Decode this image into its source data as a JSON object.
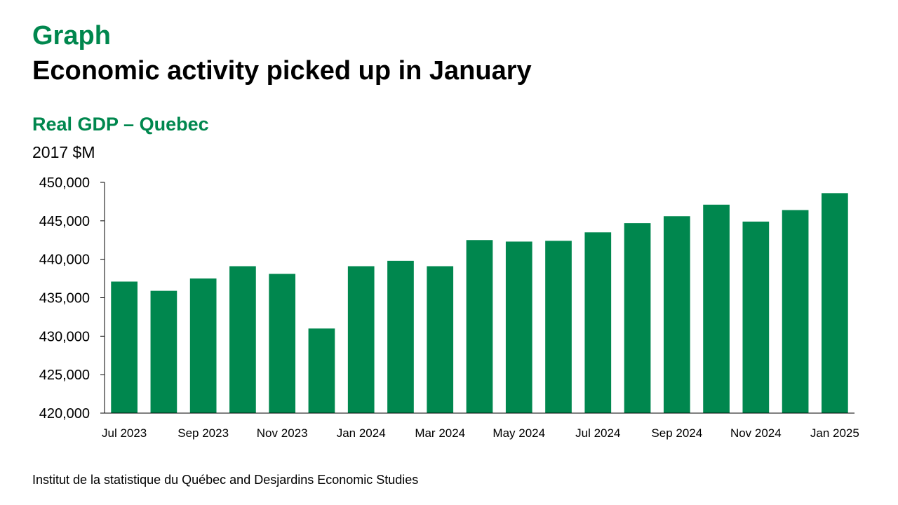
{
  "header": {
    "label": "Graph",
    "title": "Economic activity picked up in January"
  },
  "colors": {
    "accent": "#00874E",
    "bar": "#00874E",
    "axis": "#000000"
  },
  "chart_data": {
    "type": "bar",
    "title": "Real GDP – Quebec",
    "ylabel": "2017 $M",
    "xlabel": "",
    "ylim": [
      420000,
      450000
    ],
    "yticks": [
      420000,
      425000,
      430000,
      435000,
      440000,
      445000,
      450000
    ],
    "ytick_labels": [
      "420,000",
      "425,000",
      "430,000",
      "435,000",
      "440,000",
      "445,000",
      "450,000"
    ],
    "categories": [
      "Jul 2023",
      "Aug 2023",
      "Sep 2023",
      "Oct 2023",
      "Nov 2023",
      "Dec 2023",
      "Jan 2024",
      "Feb 2024",
      "Mar 2024",
      "Apr 2024",
      "May 2024",
      "Jun 2024",
      "Jul 2024",
      "Aug 2024",
      "Sep 2024",
      "Oct 2024",
      "Nov 2024",
      "Dec 2024",
      "Jan 2025"
    ],
    "xtick_labels": [
      "Jul 2023",
      "",
      "Sep 2023",
      "",
      "Nov 2023",
      "",
      "Jan 2024",
      "",
      "Mar 2024",
      "",
      "May 2024",
      "",
      "Jul 2024",
      "",
      "Sep 2024",
      "",
      "Nov 2024",
      "",
      "Jan 2025"
    ],
    "values": [
      437100,
      435900,
      437500,
      439100,
      438100,
      431000,
      439100,
      439800,
      439100,
      442500,
      442300,
      442400,
      443500,
      444700,
      445600,
      447100,
      444900,
      446400,
      448600
    ],
    "grid": false,
    "legend": "none"
  },
  "footer": {
    "source": "Institut de la statistique du Québec and Desjardins Economic Studies"
  }
}
